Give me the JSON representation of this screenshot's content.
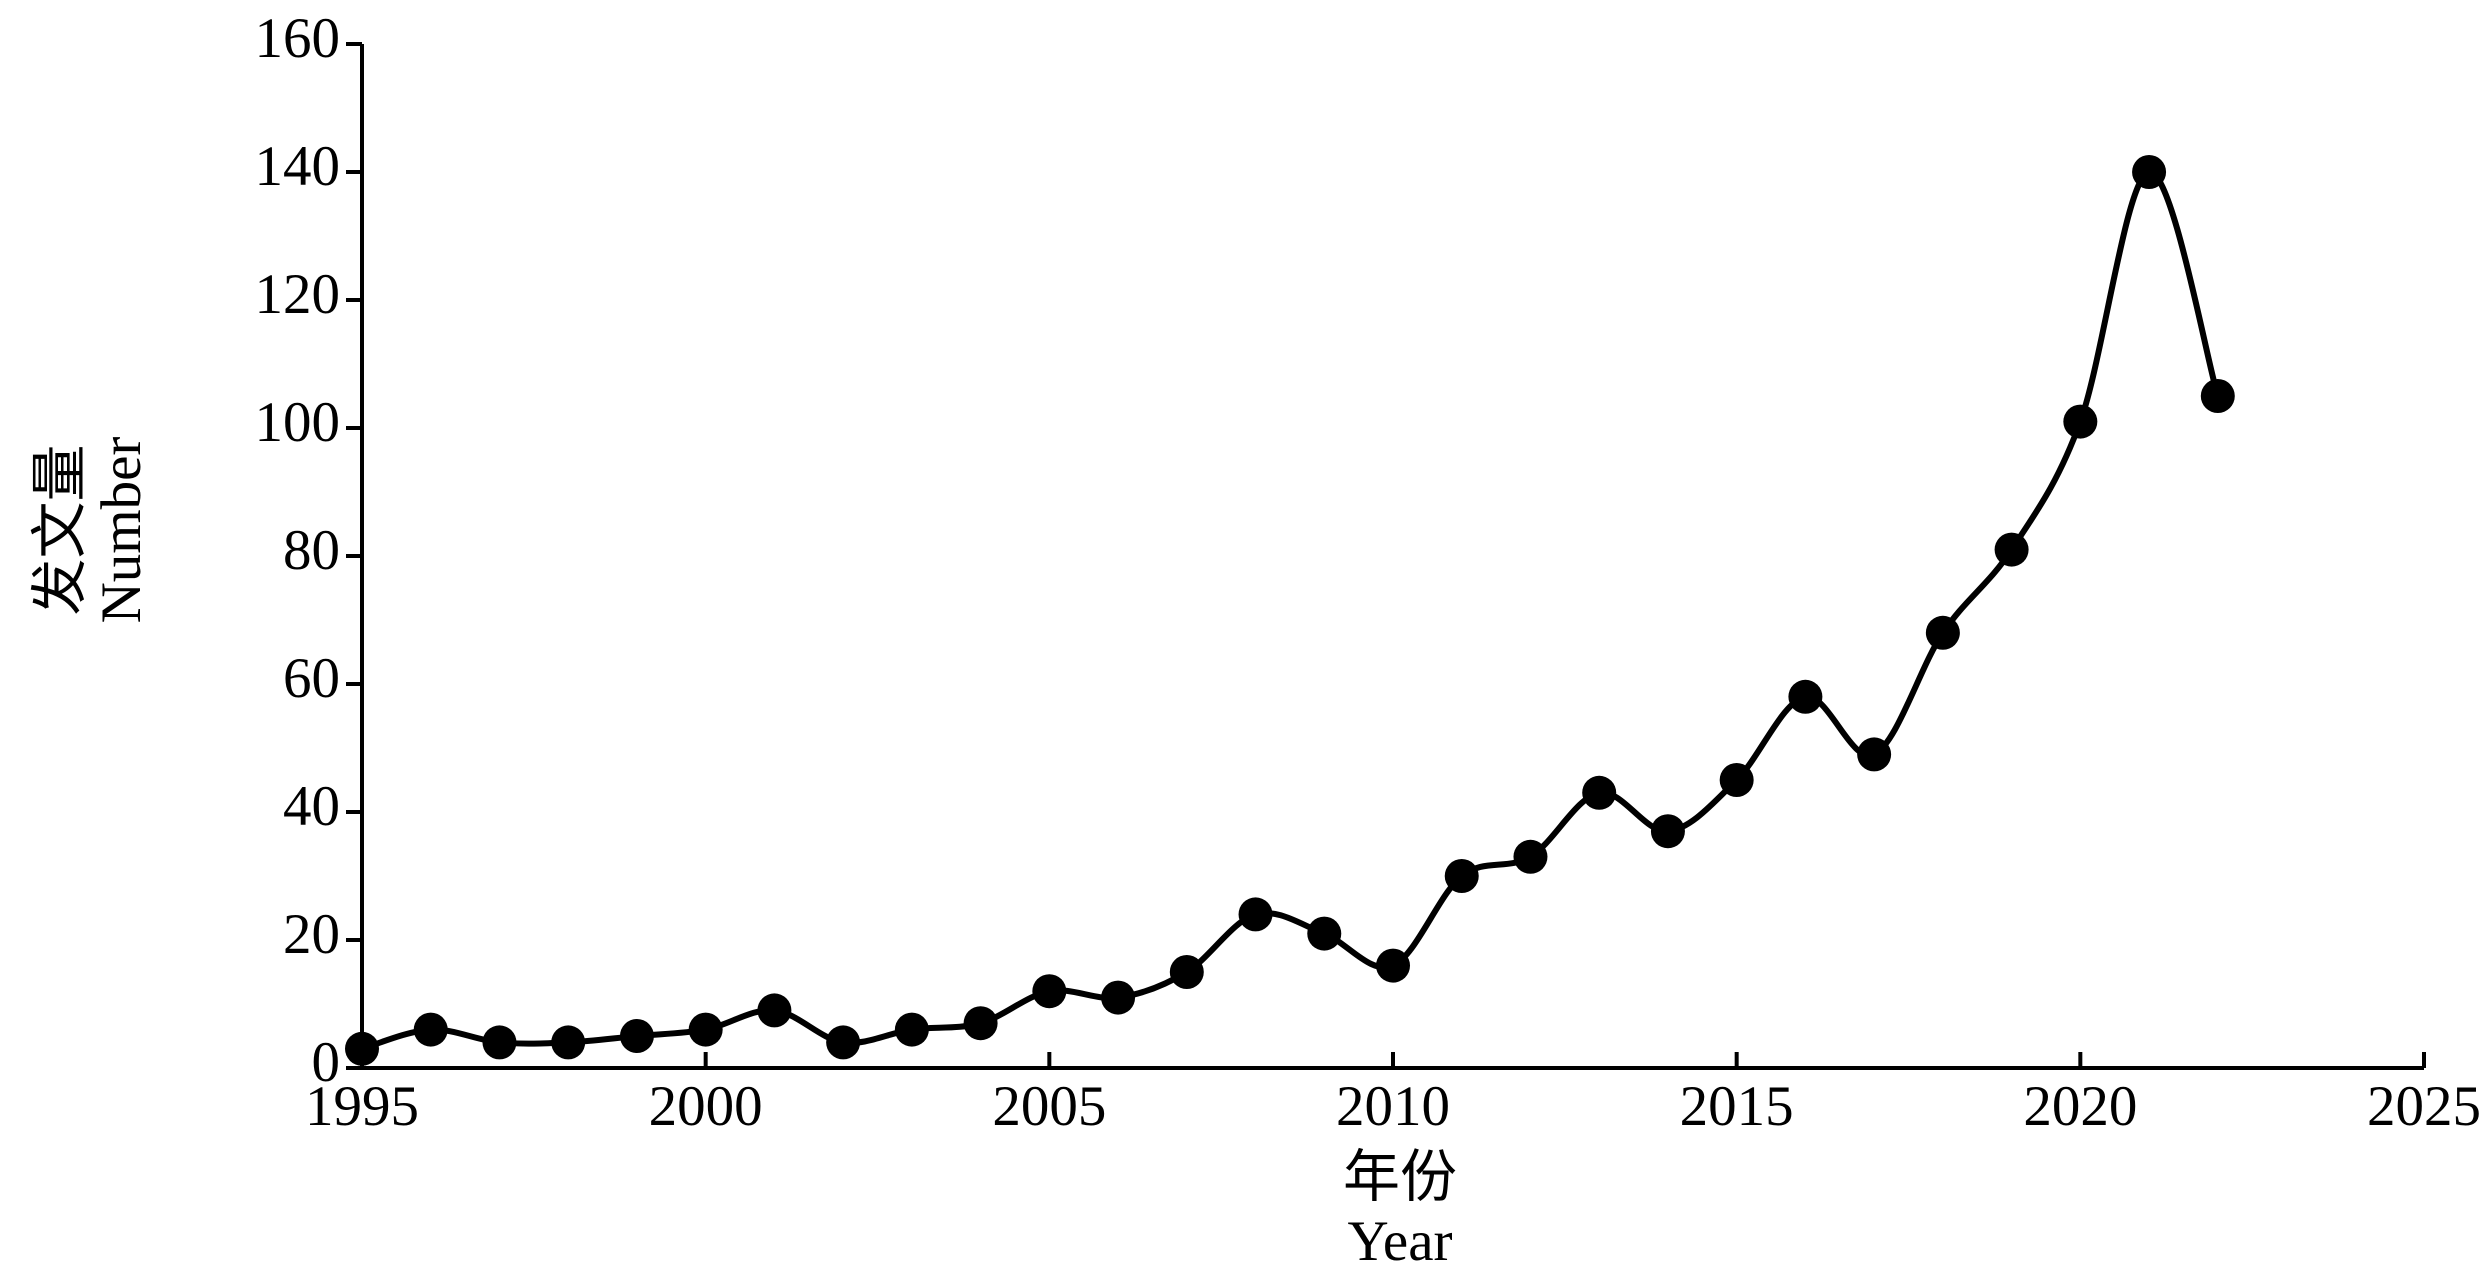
{
  "chart_data": {
    "type": "line",
    "xlabel": "年份",
    "xlabel_en": "Year",
    "ylabel": "发文量",
    "ylabel_en": "Number",
    "x": [
      1995,
      1996,
      1997,
      1998,
      1999,
      2000,
      2001,
      2002,
      2003,
      2004,
      2005,
      2006,
      2007,
      2008,
      2009,
      2010,
      2011,
      2012,
      2013,
      2014,
      2015,
      2016,
      2017,
      2018,
      2019,
      2020,
      2021,
      2022
    ],
    "series": [
      {
        "color": "#000000",
        "values": [
          3,
          6,
          4,
          4,
          5,
          6,
          9,
          4,
          6,
          7,
          12,
          11,
          15,
          24,
          21,
          16,
          30,
          33,
          43,
          37,
          45,
          58,
          49,
          68,
          81,
          101,
          140,
          105
        ]
      }
    ],
    "xlim": [
      1995,
      2025
    ],
    "xticks": [
      1995,
      2000,
      2005,
      2010,
      2015,
      2020,
      2025
    ],
    "ylim": [
      0,
      160
    ],
    "yticks": [
      0,
      20,
      40,
      60,
      80,
      100,
      120,
      140,
      160
    ],
    "smooth": true,
    "markers": true,
    "grid": false
  }
}
